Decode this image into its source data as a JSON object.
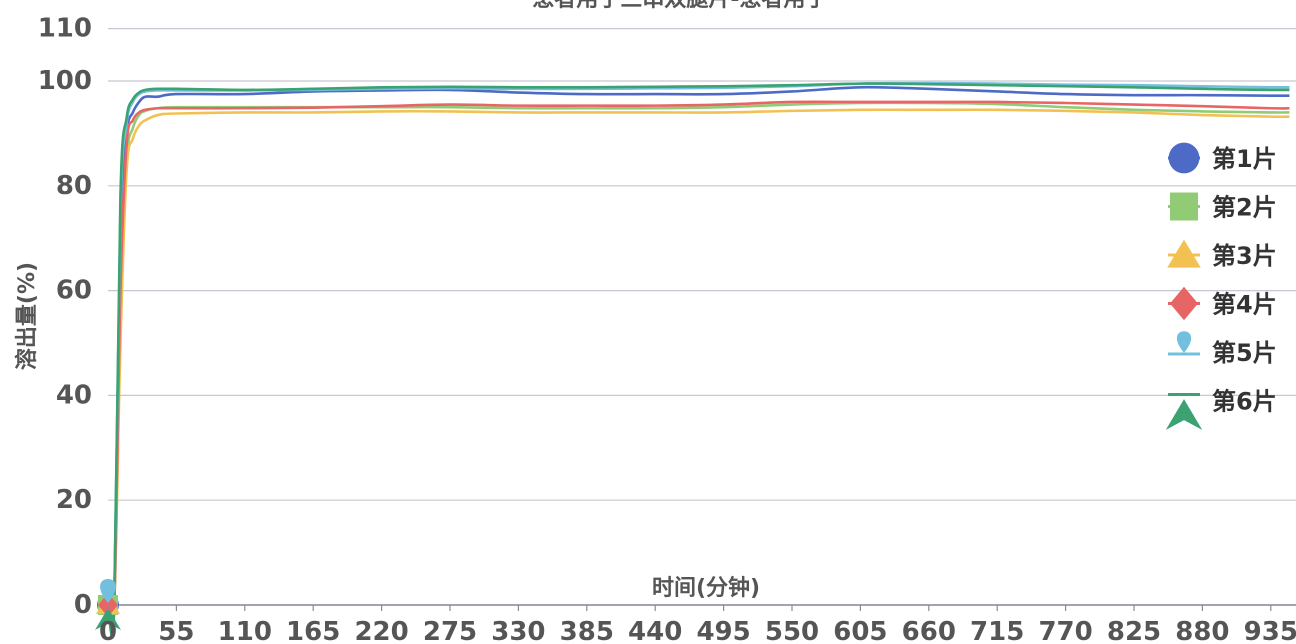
{
  "chart_data": {
    "type": "line",
    "title": "患者用于三串双腿片-患者用于",
    "xlabel": "时间(分钟)",
    "ylabel": "溶出量(%)",
    "ylim": [
      0,
      110
    ],
    "yticks": [
      0,
      20,
      40,
      60,
      80,
      100,
      110
    ],
    "xlim": [
      0,
      950
    ],
    "xticks": [
      0,
      55,
      110,
      165,
      220,
      275,
      330,
      385,
      440,
      495,
      550,
      605,
      660,
      715,
      770,
      825,
      880,
      935
    ],
    "grid": true,
    "legend_position": "right",
    "x": [
      0,
      5,
      10,
      15,
      20,
      25,
      30,
      40,
      55,
      110,
      165,
      220,
      275,
      330,
      385,
      440,
      495,
      550,
      605,
      660,
      715,
      770,
      825,
      880,
      935,
      950
    ],
    "series": [
      {
        "name": "第1片",
        "color": "#4d6bc6",
        "marker": "circle",
        "values": [
          0,
          0,
          70,
          90,
          94,
          96,
          97,
          97,
          97.5,
          97.5,
          98,
          98.2,
          98.3,
          97.8,
          97.5,
          97.5,
          97.5,
          98,
          98.8,
          98.5,
          98,
          97.5,
          97.3,
          97.3,
          97.2,
          97.2
        ]
      },
      {
        "name": "第2片",
        "color": "#91cc75",
        "marker": "square",
        "values": [
          0,
          0,
          55,
          85,
          91,
          93.5,
          94.3,
          94.8,
          95,
          95,
          95,
          95,
          95,
          94.8,
          94.8,
          94.8,
          95,
          95.5,
          95.8,
          95.8,
          95.6,
          95,
          94.5,
          94.2,
          94,
          94
        ]
      },
      {
        "name": "第3片",
        "color": "#f2c152",
        "marker": "triangle",
        "values": [
          0,
          0,
          50,
          83,
          89,
          91.5,
          92.5,
          93.5,
          93.8,
          94,
          94,
          94.2,
          94.2,
          94,
          94,
          94,
          94,
          94.3,
          94.5,
          94.5,
          94.5,
          94.3,
          94,
          93.5,
          93.2,
          93.2
        ]
      },
      {
        "name": "第4片",
        "color": "#e86565",
        "marker": "diamond",
        "values": [
          0,
          0,
          60,
          88,
          92.5,
          94,
          94.5,
          94.8,
          94.8,
          94.8,
          94.9,
          95.2,
          95.5,
          95.3,
          95.3,
          95.3,
          95.5,
          96,
          96,
          96,
          96,
          95.8,
          95.5,
          95.2,
          94.8,
          94.8
        ]
      },
      {
        "name": "第5片",
        "color": "#73c0de",
        "marker": "pin",
        "values": [
          0,
          0,
          75,
          92,
          96,
          97.5,
          98,
          98.2,
          98.2,
          98.2,
          98.3,
          98.5,
          98.6,
          98.5,
          98.5,
          98.6,
          98.7,
          99,
          99.5,
          99.6,
          99.5,
          99.3,
          99.2,
          99,
          98.8,
          98.8
        ]
      },
      {
        "name": "第6片",
        "color": "#3ba272",
        "marker": "arrow",
        "values": [
          0,
          0,
          78,
          93,
          96.5,
          97.8,
          98.3,
          98.5,
          98.5,
          98.3,
          98.5,
          98.8,
          98.9,
          98.8,
          98.8,
          98.9,
          99,
          99.2,
          99.5,
          99.4,
          99.2,
          99,
          98.8,
          98.5,
          98.3,
          98.3
        ]
      }
    ]
  }
}
